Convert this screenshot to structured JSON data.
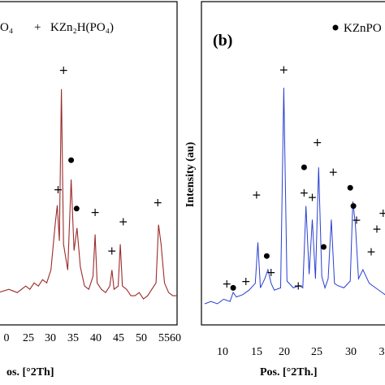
{
  "colors": {
    "left_trace": "#9b2b2b",
    "right_trace": "#2a3fd1",
    "frame": "#000000"
  },
  "chart_data": [
    {
      "type": "line",
      "panel_label": "",
      "legend": [
        {
          "symbol": "",
          "text": "O₄"
        },
        {
          "symbol": "+",
          "text": "KZn₂H(PO₄)"
        }
      ],
      "xlabel": "os. [°2Th]",
      "ylabel": "",
      "xlim": [
        17.5,
        60
      ],
      "xticks": [
        "0",
        "25",
        "30",
        "35",
        "40",
        "45",
        "50",
        "55",
        "60"
      ],
      "grid": false,
      "series": [
        {
          "x": [
            17.5,
            20,
            22,
            24,
            25,
            26,
            27,
            28,
            29,
            30,
            31,
            31.5,
            32,
            32.5,
            33,
            34,
            34.8,
            35.5,
            36.2,
            37,
            38,
            39,
            40,
            40.5,
            41,
            42,
            43,
            44,
            44.5,
            45,
            46,
            46.5,
            47,
            48,
            49,
            50,
            51,
            52,
            53,
            54,
            55,
            55.6,
            56.2,
            57,
            58,
            59,
            60
          ],
          "y": [
            7,
            8,
            7,
            9,
            8,
            10,
            9,
            11,
            10,
            14,
            28,
            34,
            23,
            70,
            22,
            14,
            42,
            20,
            27,
            15,
            9,
            8,
            12,
            25,
            10,
            8,
            7,
            9,
            14,
            8,
            9,
            22,
            9,
            8,
            6,
            6,
            7,
            5,
            6,
            8,
            10,
            28,
            22,
            10,
            7,
            6,
            6
          ]
        }
      ],
      "markers": [
        {
          "symbol": "+",
          "x": 31.7,
          "y": 39
        },
        {
          "symbol": "+",
          "x": 33,
          "y": 76
        },
        {
          "symbol": "dot",
          "x": 34.8,
          "y": 48
        },
        {
          "symbol": "dot",
          "x": 36.1,
          "y": 33
        },
        {
          "symbol": "+",
          "x": 40.5,
          "y": 32
        },
        {
          "symbol": "+",
          "x": 44.5,
          "y": 20
        },
        {
          "symbol": "+",
          "x": 47.2,
          "y": 29
        },
        {
          "symbol": "+",
          "x": 55.4,
          "y": 35
        }
      ]
    },
    {
      "type": "line",
      "panel_label": "(b)",
      "legend": [
        {
          "symbol": "dot",
          "text": "KZnPO"
        }
      ],
      "xlabel": "Pos. [°2Th.]",
      "ylabel": "Intensity (au)",
      "xlim": [
        7,
        36
      ],
      "xticks": [
        "10",
        "15",
        "20",
        "25",
        "30",
        "3"
      ],
      "grid": false,
      "series": [
        {
          "x": [
            7,
            8,
            9,
            10,
            11,
            11.5,
            12,
            13,
            14,
            15,
            15.4,
            15.8,
            16.5,
            17,
            17.5,
            18,
            19,
            19.5,
            20,
            21,
            22,
            22.5,
            23,
            23.5,
            24,
            24.5,
            25,
            25.5,
            26,
            26.5,
            27,
            27.5,
            28,
            29,
            30,
            30.4,
            30.8,
            31.3,
            32,
            33,
            34,
            35,
            36
          ],
          "y": [
            5,
            6,
            5,
            7,
            6,
            10,
            8,
            9,
            11,
            14,
            32,
            12,
            16,
            20,
            14,
            11,
            12,
            100,
            15,
            12,
            13,
            12,
            48,
            18,
            42,
            16,
            65,
            17,
            12,
            16,
            42,
            14,
            13,
            12,
            15,
            50,
            40,
            16,
            20,
            14,
            12,
            10,
            8
          ]
        }
      ],
      "markers": [
        {
          "symbol": "+",
          "x": 10.5,
          "y": 14
        },
        {
          "symbol": "dot",
          "x": 11.5,
          "y": 12
        },
        {
          "symbol": "+",
          "x": 13.5,
          "y": 15
        },
        {
          "symbol": "+",
          "x": 15.2,
          "y": 53
        },
        {
          "symbol": "dot",
          "x": 16.8,
          "y": 26
        },
        {
          "symbol": "+",
          "x": 17.5,
          "y": 19
        },
        {
          "symbol": "+",
          "x": 19.5,
          "y": 108
        },
        {
          "symbol": "+",
          "x": 21.8,
          "y": 13
        },
        {
          "symbol": "dot",
          "x": 22.7,
          "y": 65
        },
        {
          "symbol": "+",
          "x": 22.7,
          "y": 54
        },
        {
          "symbol": "+",
          "x": 24,
          "y": 52
        },
        {
          "symbol": "+",
          "x": 24.8,
          "y": 76
        },
        {
          "symbol": "dot",
          "x": 25.8,
          "y": 30
        },
        {
          "symbol": "+",
          "x": 27.3,
          "y": 63
        },
        {
          "symbol": "dot",
          "x": 30,
          "y": 56
        },
        {
          "symbol": "dot",
          "x": 30.5,
          "y": 48
        },
        {
          "symbol": "+",
          "x": 31,
          "y": 42
        },
        {
          "symbol": "+",
          "x": 33.3,
          "y": 28
        },
        {
          "symbol": "+",
          "x": 34.2,
          "y": 38
        },
        {
          "symbol": "+",
          "x": 35.2,
          "y": 45
        }
      ]
    }
  ]
}
